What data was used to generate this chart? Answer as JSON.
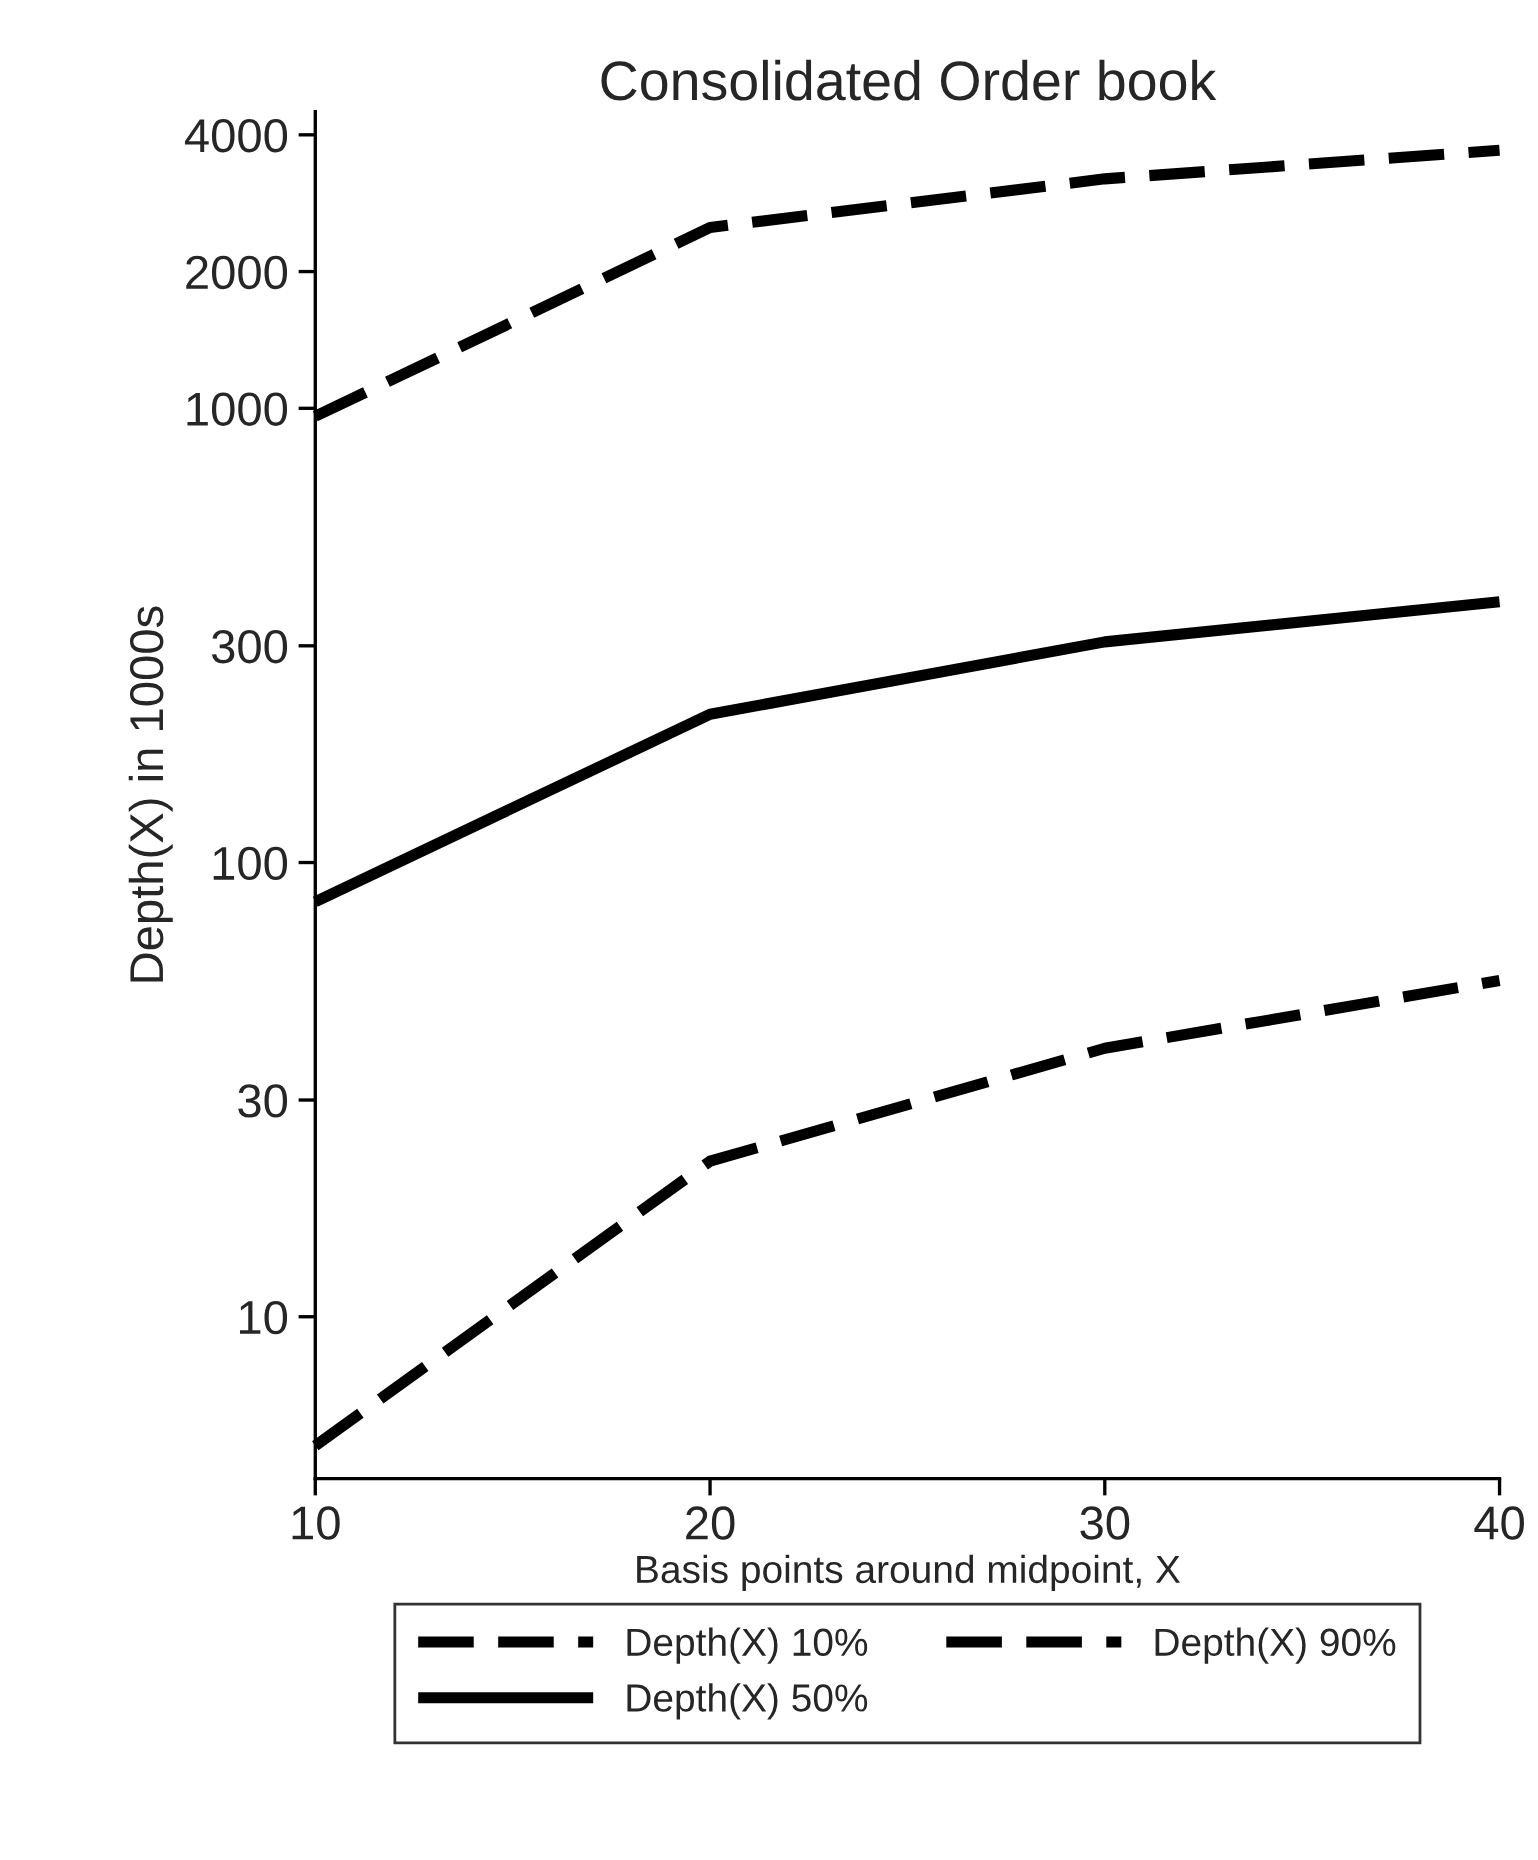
{
  "chart_data": {
    "type": "line",
    "title": "Consolidated Order book",
    "xlabel": "Basis points around midpoint, X",
    "ylabel": "Depth(X) in 1000s",
    "x": [
      10,
      20,
      30,
      40
    ],
    "series": [
      {
        "name": "Depth(X) 10%",
        "color": "#000000",
        "line_style": "dashed",
        "values": [
          5.2,
          22,
          39,
          55
        ]
      },
      {
        "name": "Depth(X) 50%",
        "color": "#000000",
        "line_style": "solid",
        "values": [
          82,
          212,
          306,
          375
        ]
      },
      {
        "name": "Depth(X) 90%",
        "color": "#000000",
        "line_style": "dashed",
        "values": [
          960,
          2500,
          3200,
          3700
        ]
      }
    ],
    "log": "y",
    "xlim": [
      10,
      40
    ],
    "xticks": [
      10,
      20,
      30,
      40
    ],
    "ylim": [
      4.4,
      4500
    ],
    "yticks": [
      10,
      30,
      100,
      300,
      1000,
      2000,
      4000
    ],
    "grid": false,
    "legend": "bottom",
    "marker": "none"
  }
}
